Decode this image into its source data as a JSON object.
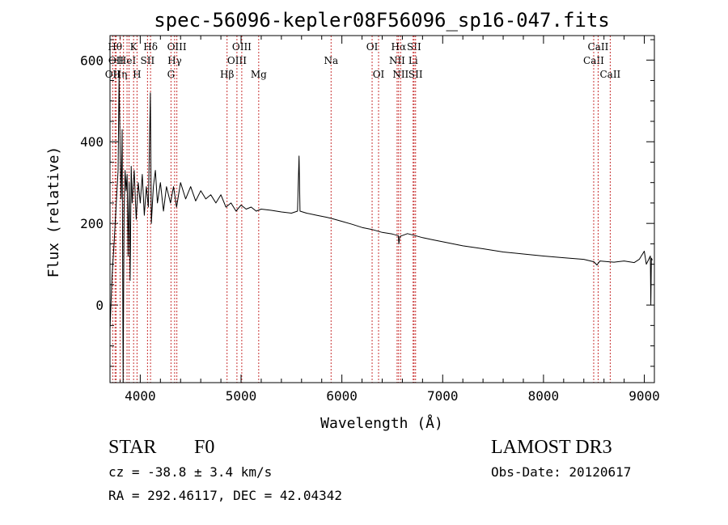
{
  "chart_data": {
    "type": "line",
    "title": "spec-56096-kepler08F56096_sp16-047.fits",
    "xlabel": "Wavelength (Å)",
    "ylabel": "Flux (relative)",
    "xlim": [
      3700,
      9100
    ],
    "ylim": [
      -190,
      660
    ],
    "xticks": [
      4000,
      5000,
      6000,
      7000,
      8000,
      9000
    ],
    "yticks": [
      0,
      200,
      400,
      600
    ],
    "series": [
      {
        "name": "flux",
        "points": [
          [
            3700,
            -60
          ],
          [
            3720,
            70
          ],
          [
            3740,
            150
          ],
          [
            3760,
            240
          ],
          [
            3780,
            330
          ],
          [
            3790,
            560
          ],
          [
            3800,
            380
          ],
          [
            3810,
            260
          ],
          [
            3820,
            430
          ],
          [
            3830,
            -190
          ],
          [
            3840,
            230
          ],
          [
            3850,
            330
          ],
          [
            3860,
            280
          ],
          [
            3870,
            320
          ],
          [
            3880,
            120
          ],
          [
            3890,
            300
          ],
          [
            3900,
            60
          ],
          [
            3910,
            340
          ],
          [
            3920,
            250
          ],
          [
            3940,
            330
          ],
          [
            3960,
            210
          ],
          [
            3980,
            300
          ],
          [
            4000,
            250
          ],
          [
            4020,
            320
          ],
          [
            4040,
            220
          ],
          [
            4060,
            290
          ],
          [
            4080,
            240
          ],
          [
            4100,
            520
          ],
          [
            4110,
            200
          ],
          [
            4130,
            290
          ],
          [
            4150,
            330
          ],
          [
            4170,
            250
          ],
          [
            4200,
            300
          ],
          [
            4230,
            230
          ],
          [
            4260,
            290
          ],
          [
            4300,
            250
          ],
          [
            4330,
            290
          ],
          [
            4360,
            240
          ],
          [
            4400,
            300
          ],
          [
            4450,
            260
          ],
          [
            4500,
            290
          ],
          [
            4550,
            255
          ],
          [
            4600,
            280
          ],
          [
            4650,
            260
          ],
          [
            4700,
            270
          ],
          [
            4750,
            250
          ],
          [
            4800,
            270
          ],
          [
            4850,
            240
          ],
          [
            4900,
            250
          ],
          [
            4950,
            230
          ],
          [
            5000,
            245
          ],
          [
            5050,
            235
          ],
          [
            5100,
            240
          ],
          [
            5150,
            230
          ],
          [
            5200,
            235
          ],
          [
            5300,
            232
          ],
          [
            5400,
            228
          ],
          [
            5500,
            225
          ],
          [
            5560,
            230
          ],
          [
            5575,
            365
          ],
          [
            5585,
            230
          ],
          [
            5650,
            225
          ],
          [
            5750,
            220
          ],
          [
            5850,
            215
          ],
          [
            5900,
            212
          ],
          [
            6000,
            205
          ],
          [
            6100,
            198
          ],
          [
            6200,
            190
          ],
          [
            6300,
            185
          ],
          [
            6400,
            178
          ],
          [
            6500,
            174
          ],
          [
            6560,
            170
          ],
          [
            6565,
            150
          ],
          [
            6575,
            168
          ],
          [
            6650,
            175
          ],
          [
            6700,
            172
          ],
          [
            6800,
            165
          ],
          [
            6900,
            160
          ],
          [
            7000,
            155
          ],
          [
            7200,
            145
          ],
          [
            7400,
            138
          ],
          [
            7600,
            130
          ],
          [
            7800,
            125
          ],
          [
            8000,
            120
          ],
          [
            8200,
            116
          ],
          [
            8400,
            112
          ],
          [
            8500,
            106
          ],
          [
            8530,
            98
          ],
          [
            8560,
            108
          ],
          [
            8650,
            106
          ],
          [
            8700,
            105
          ],
          [
            8800,
            108
          ],
          [
            8900,
            104
          ],
          [
            8950,
            112
          ],
          [
            9000,
            132
          ],
          [
            9020,
            100
          ],
          [
            9040,
            110
          ],
          [
            9060,
            120
          ],
          [
            9065,
            0
          ],
          [
            9070,
            115
          ],
          [
            9080,
            110
          ]
        ]
      }
    ],
    "lines": [
      {
        "w": 3727,
        "label": "OII",
        "row": 3
      },
      {
        "w": 3750,
        "label": "Hθ",
        "row": 1
      },
      {
        "w": 3760,
        "label": "OII",
        "row": 2
      },
      {
        "w": 3800,
        "label": "Hη",
        "row": 3
      },
      {
        "w": 3834,
        "label": "",
        "row": 0
      },
      {
        "w": 3869,
        "label": "HeI",
        "row": 2
      },
      {
        "w": 3889,
        "label": "",
        "row": 0
      },
      {
        "w": 3934,
        "label": "K",
        "row": 1
      },
      {
        "w": 3968,
        "label": "H",
        "row": 3
      },
      {
        "w": 4072,
        "label": "SII",
        "row": 2
      },
      {
        "w": 4102,
        "label": "Hδ",
        "row": 1
      },
      {
        "w": 4305,
        "label": "G",
        "row": 3
      },
      {
        "w": 4341,
        "label": "Hγ",
        "row": 2
      },
      {
        "w": 4363,
        "label": "OIII",
        "row": 1
      },
      {
        "w": 4861,
        "label": "Hβ",
        "row": 3
      },
      {
        "w": 4959,
        "label": "OIII",
        "row": 2
      },
      {
        "w": 5007,
        "label": "OIII",
        "row": 1
      },
      {
        "w": 5175,
        "label": "Mg",
        "row": 3
      },
      {
        "w": 5893,
        "label": "Na",
        "row": 2
      },
      {
        "w": 6300,
        "label": "OI",
        "row": 1
      },
      {
        "w": 6364,
        "label": "OI",
        "row": 3
      },
      {
        "w": 6548,
        "label": "NII",
        "row": 2
      },
      {
        "w": 6563,
        "label": "Hα",
        "row": 1
      },
      {
        "w": 6583,
        "label": "NII",
        "row": 3
      },
      {
        "w": 6707,
        "label": "Li",
        "row": 2
      },
      {
        "w": 6716,
        "label": "SII",
        "row": 1
      },
      {
        "w": 6731,
        "label": "SII",
        "row": 3
      },
      {
        "w": 8498,
        "label": "CaII",
        "row": 2
      },
      {
        "w": 8542,
        "label": "CaII",
        "row": 1
      },
      {
        "w": 8662,
        "label": "CaII",
        "row": 3
      }
    ]
  },
  "info": {
    "class": "STAR",
    "subclass": "F0",
    "survey": "LAMOST DR3",
    "redshift": "cz = -38.8 ± 3.4 km/s",
    "obs_date": "Obs-Date: 20120617",
    "coords": "RA = 292.46117, DEC =  42.04342"
  }
}
